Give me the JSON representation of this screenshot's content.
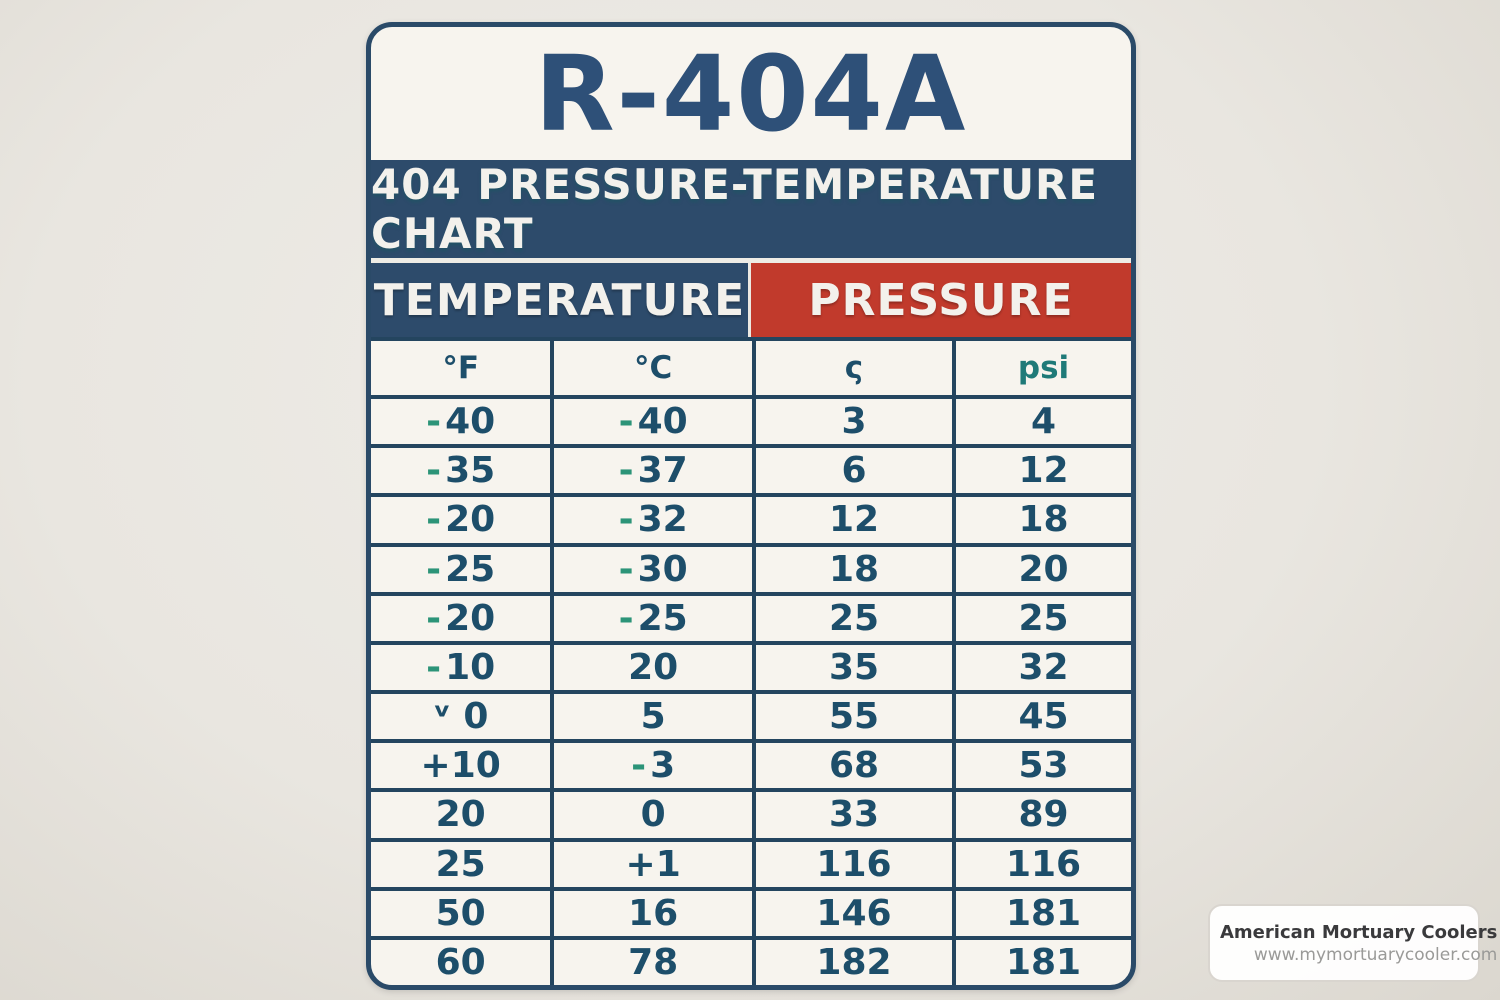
{
  "poster": {
    "title": "R-404A",
    "subtitle": "404 PRESSURE-TEMPERATURE CHART",
    "group_headers": {
      "temperature": "TEMPERATURE",
      "pressure": "PRESSURE"
    },
    "columns": [
      "°F",
      "°C",
      "ς",
      "psi"
    ]
  },
  "chart_data": {
    "type": "table",
    "title": "R-404A 404 Pressure-Temperature Chart",
    "column_groups": [
      "TEMPERATURE",
      "PRESSURE"
    ],
    "columns": [
      "°F",
      "°C",
      "ς",
      "psi"
    ],
    "rows": [
      [
        "-40",
        "-40",
        "3",
        "4"
      ],
      [
        "-35",
        "-37",
        "6",
        "12"
      ],
      [
        "-20",
        "-32",
        "12",
        "18"
      ],
      [
        "-25",
        "-30",
        "18",
        "20"
      ],
      [
        "-20",
        "-25",
        "25",
        "25"
      ],
      [
        "-10",
        "20",
        "35",
        "32"
      ],
      [
        "ᵛ 0",
        "5",
        "55",
        "45"
      ],
      [
        "+10",
        "-3",
        "68",
        "53"
      ],
      [
        "20",
        "0",
        "33",
        "89"
      ],
      [
        "25",
        "+1",
        "116",
        "116"
      ],
      [
        "50",
        "16",
        "146",
        "181"
      ],
      [
        "60",
        "78",
        "182",
        "181"
      ]
    ]
  },
  "watermark": {
    "name": "American Mortuary Coolers",
    "url": "www.mymortuarycooler.com",
    "logo_line1": "merican",
    "logo_line2": "ortuary"
  },
  "colors": {
    "navy": "#2d4b6b",
    "red": "#c13a2c",
    "grid_line": "#24455f",
    "number_text": "#1d4e6a",
    "negative_sign": "#2c9478",
    "card_bg": "#f7f4ee",
    "page_bg": "#e9e6e0"
  }
}
